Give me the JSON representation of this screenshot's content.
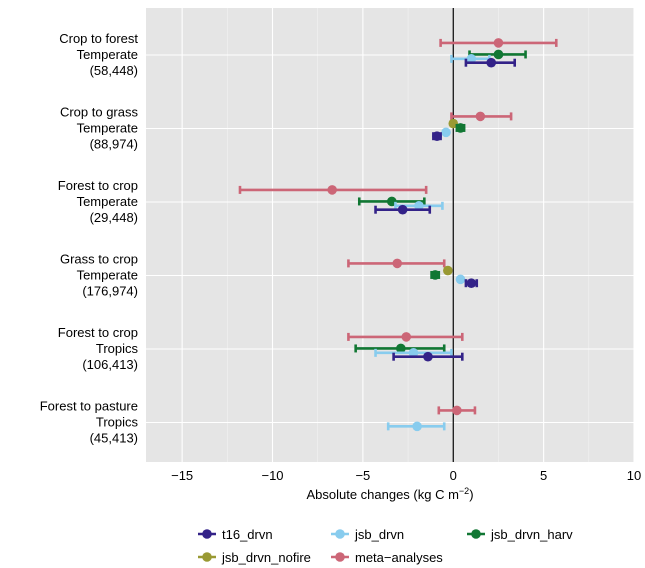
{
  "chart_data": {
    "type": "scatter",
    "subtype": "horizontal-dot-errorbar",
    "xlabel": "Absolute changes (kg C m",
    "xlabel_superscript": "−2",
    "xlabel_suffix": ")",
    "xlim": [
      -17,
      10
    ],
    "xticks": [
      -15,
      -10,
      -5,
      0,
      5,
      10
    ],
    "xtick_labels": [
      "−15",
      "−10",
      "−5",
      "0",
      "5",
      "10"
    ],
    "zero_line": 0,
    "grid": true,
    "legend_position": "bottom",
    "categories": [
      {
        "lines": [
          "Crop to forest",
          "Temperate",
          "(58,448)"
        ]
      },
      {
        "lines": [
          "Crop to grass",
          "Temperate",
          "(88,974)"
        ]
      },
      {
        "lines": [
          "Forest to crop",
          "Temperate",
          "(29,448)"
        ]
      },
      {
        "lines": [
          "Grass to crop",
          "Temperate",
          "(176,974)"
        ]
      },
      {
        "lines": [
          "Forest to crop",
          "Tropics",
          "(106,413)"
        ]
      },
      {
        "lines": [
          "Forest to pasture",
          "Tropics",
          "(45,413)"
        ]
      }
    ],
    "series": [
      {
        "name": "meta−analyses",
        "color": "#cc6677",
        "offset": 0.22,
        "points": [
          {
            "value": 2.5,
            "low": -0.7,
            "high": 5.7
          },
          {
            "value": 1.5,
            "low": -0.1,
            "high": 3.2
          },
          {
            "value": -6.7,
            "low": -11.8,
            "high": -1.5
          },
          {
            "value": -3.1,
            "low": -5.8,
            "high": -0.5
          },
          {
            "value": -2.6,
            "low": -5.8,
            "high": 0.5
          },
          {
            "value": 0.2,
            "low": -0.8,
            "high": 1.2
          }
        ]
      },
      {
        "name": "jsb_drvn_nofire",
        "color": "#999933",
        "offset": 0.09,
        "points": [
          null,
          {
            "value": 0.0,
            "low": 0.0,
            "high": 0.0
          },
          null,
          {
            "value": -0.3,
            "low": -0.3,
            "high": -0.3
          },
          null,
          null
        ]
      },
      {
        "name": "jsb_drvn_harv",
        "color": "#117733",
        "offset": 0.01,
        "points": [
          {
            "value": 2.5,
            "low": 0.9,
            "high": 4.0
          },
          {
            "value": 0.4,
            "low": 0.2,
            "high": 0.6
          },
          {
            "value": -3.4,
            "low": -5.2,
            "high": -1.6
          },
          {
            "value": -1.0,
            "low": -1.2,
            "high": -0.8
          },
          {
            "value": -2.9,
            "low": -5.4,
            "high": -0.5
          },
          null
        ]
      },
      {
        "name": "jsb_drvn",
        "color": "#88ccee",
        "offset": -0.07,
        "points": [
          {
            "value": 1.0,
            "low": -0.1,
            "high": 2.0
          },
          {
            "value": -0.4,
            "low": -0.4,
            "high": -0.4
          },
          {
            "value": -1.9,
            "low": -3.2,
            "high": -0.6
          },
          {
            "value": 0.4,
            "low": 0.4,
            "high": 0.4
          },
          {
            "value": -2.2,
            "low": -4.3,
            "high": -0.1
          },
          {
            "value": -2.0,
            "low": -3.6,
            "high": -0.5
          }
        ]
      },
      {
        "name": "t16_drvn",
        "color": "#332288",
        "offset": -0.14,
        "points": [
          {
            "value": 2.1,
            "low": 0.7,
            "high": 3.4
          },
          {
            "value": -0.9,
            "low": -1.1,
            "high": -0.7
          },
          {
            "value": -2.8,
            "low": -4.3,
            "high": -1.3
          },
          {
            "value": 1.0,
            "low": 0.7,
            "high": 1.3
          },
          {
            "value": -1.4,
            "low": -3.3,
            "high": 0.5
          },
          null
        ]
      }
    ],
    "legend_order": [
      "t16_drvn",
      "jsb_drvn",
      "jsb_drvn_harv",
      "jsb_drvn_nofire",
      "meta−analyses"
    ]
  }
}
